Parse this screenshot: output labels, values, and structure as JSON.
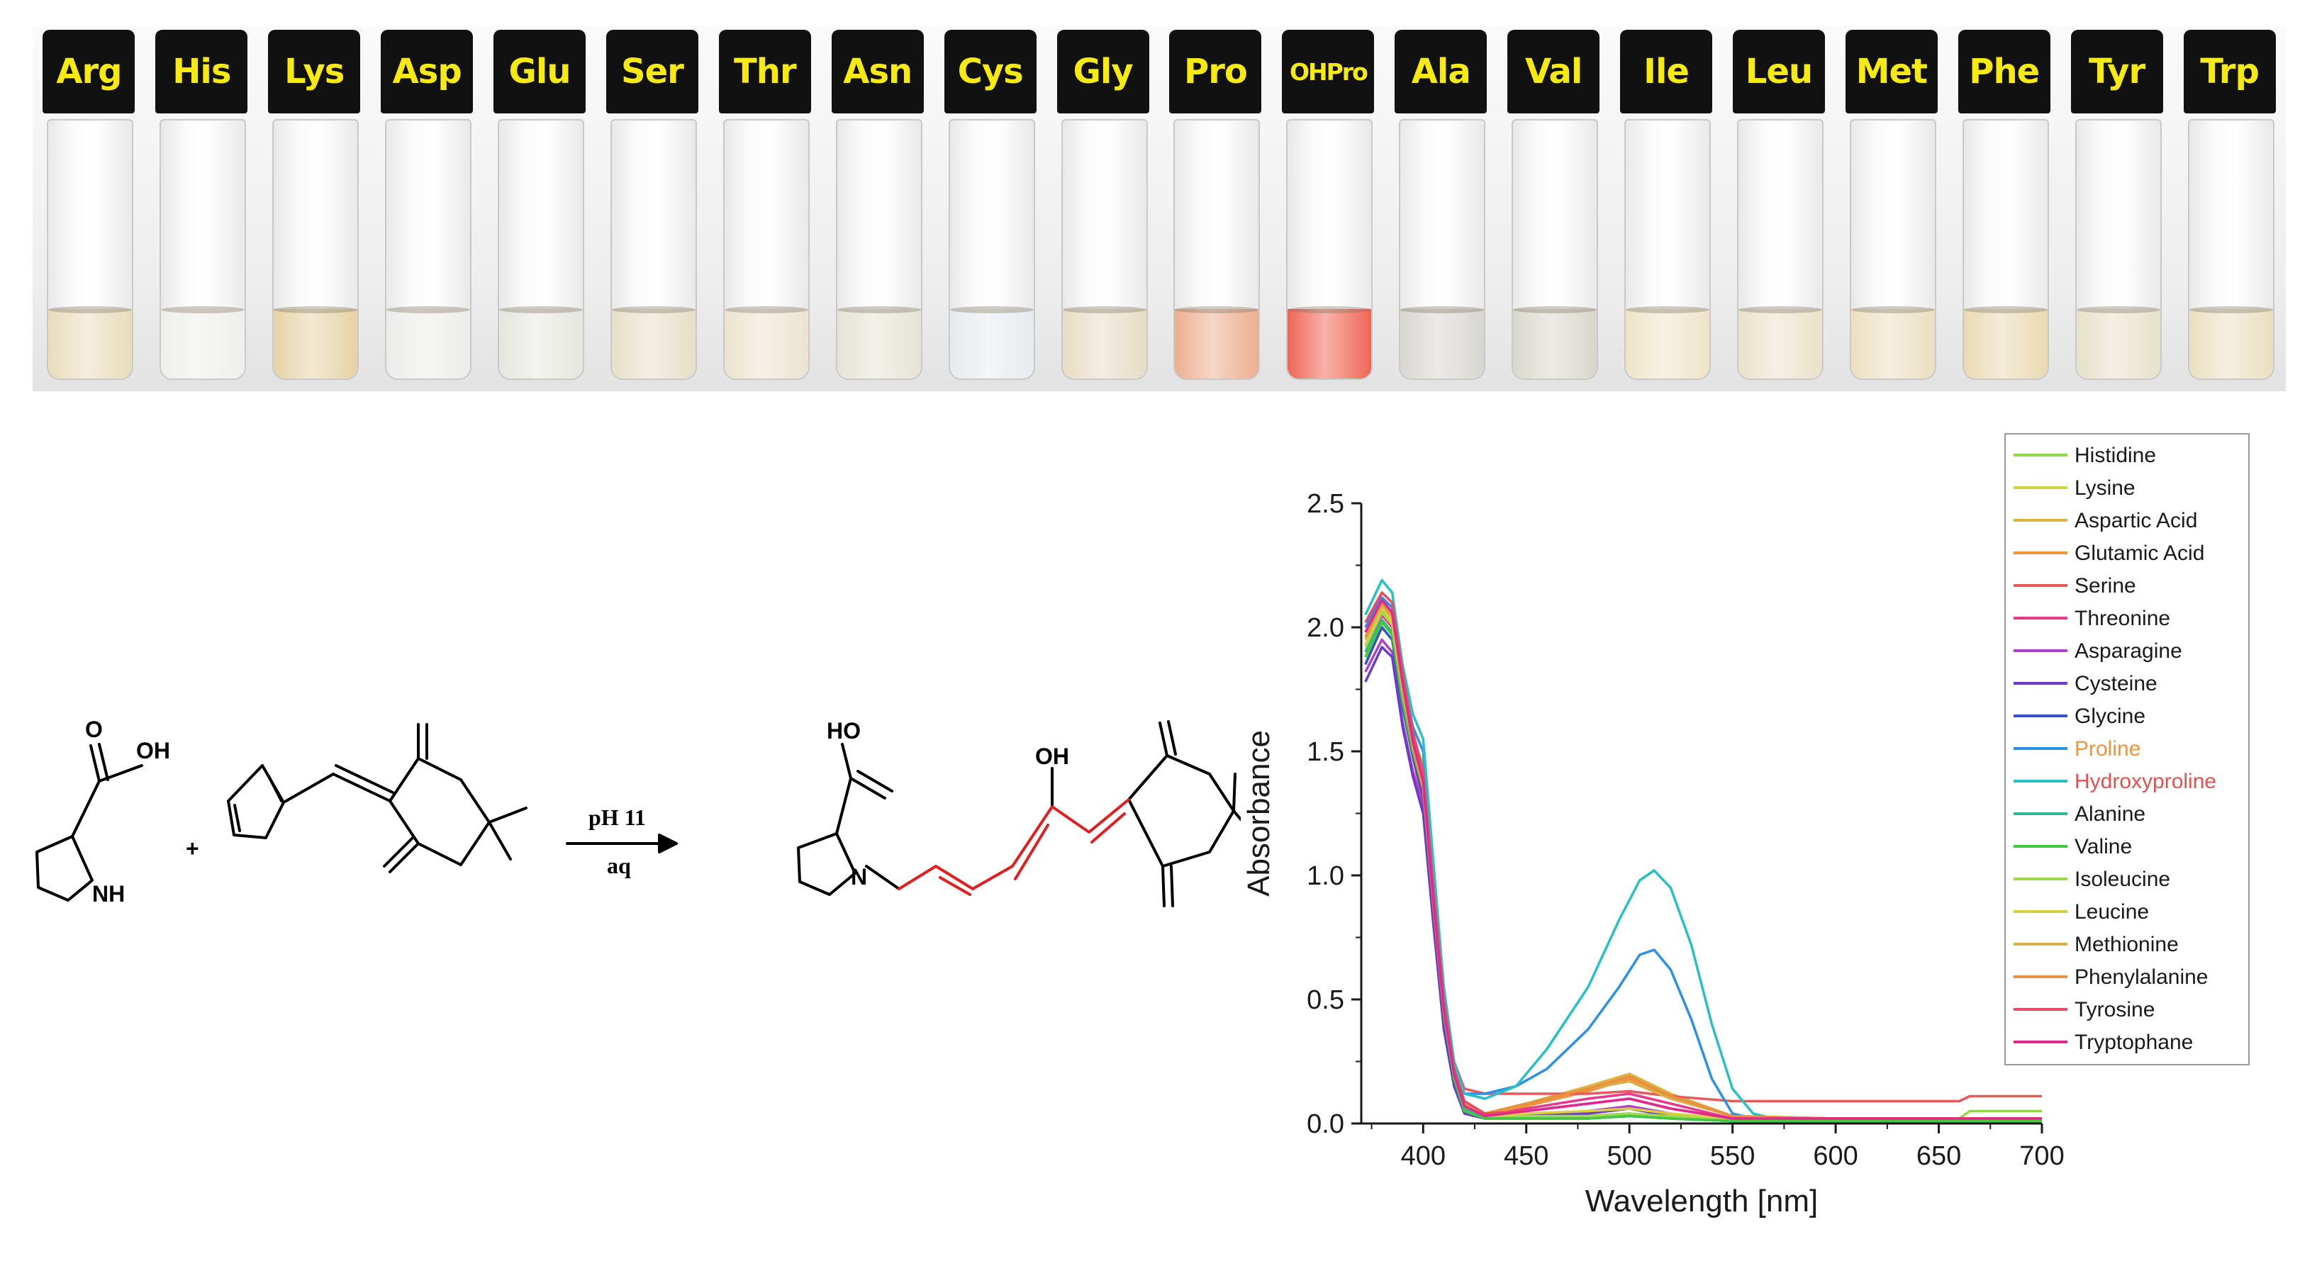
{
  "vials": [
    {
      "label": "Arg",
      "color": "#e9dcbc"
    },
    {
      "label": "His",
      "color": "#eeeeea"
    },
    {
      "label": "Lys",
      "color": "#e7d2a6"
    },
    {
      "label": "Asp",
      "color": "#ececea"
    },
    {
      "label": "Glu",
      "color": "#e6e6df"
    },
    {
      "label": "Ser",
      "color": "#e6dfc8"
    },
    {
      "label": "Thr",
      "color": "#ebe3cf"
    },
    {
      "label": "Asn",
      "color": "#e6e3d6"
    },
    {
      "label": "Cys",
      "color": "#e7ebee"
    },
    {
      "label": "Gly",
      "color": "#e7dcc4"
    },
    {
      "label": "Pro",
      "color": "#ecae90"
    },
    {
      "label": "OHPro",
      "color": "#ef6655"
    },
    {
      "label": "Ala",
      "color": "#d8d6d0"
    },
    {
      "label": "Val",
      "color": "#d9d7cc"
    },
    {
      "label": "Ile",
      "color": "#eee4c8"
    },
    {
      "label": "Leu",
      "color": "#e9e1c9"
    },
    {
      "label": "Met",
      "color": "#ebdfc0"
    },
    {
      "label": "Phe",
      "color": "#ead9b2"
    },
    {
      "label": "Tyr",
      "color": "#e7e1c9"
    },
    {
      "label": "Trp",
      "color": "#e9dfc1"
    }
  ],
  "scheme": {
    "reactant_label_OH": "OH",
    "reactant_label_O": "O",
    "reactant_label_NH": "NH",
    "plus": "+",
    "condition_top": "pH 11",
    "condition_bottom": "aq",
    "product_label_HO": "HO",
    "product_label_N": "N",
    "product_label_OH": "OH",
    "highlight_color": "#e02020"
  },
  "chart_data": {
    "type": "line",
    "xlabel": "Wavelength [nm]",
    "ylabel": "Absorbance",
    "xlim": [
      370,
      700
    ],
    "ylim": [
      0,
      2.5
    ],
    "xticks": [
      400,
      450,
      500,
      550,
      600,
      650,
      700
    ],
    "yticks": [
      0.0,
      0.5,
      1.0,
      1.5,
      2.0,
      2.5
    ],
    "xtick_labels": [
      "400",
      "450",
      "500",
      "550",
      "600",
      "650",
      "700"
    ],
    "ytick_labels": [
      "0.0",
      "0.5",
      "1.0",
      "1.5",
      "2.0",
      "2.5"
    ],
    "legend_position": "top-right",
    "series": [
      {
        "name": "Histidine",
        "color": "#8fd84a",
        "legend_text_color": "#1a1a1a",
        "x": [
          372,
          380,
          385,
          390,
          395,
          400,
          405,
          410,
          415,
          420,
          430,
          450,
          480,
          500,
          520,
          550,
          600,
          660,
          665,
          700
        ],
        "y": [
          1.85,
          2.05,
          2.0,
          1.75,
          1.55,
          1.45,
          1.0,
          0.55,
          0.25,
          0.08,
          0.03,
          0.02,
          0.02,
          0.03,
          0.02,
          0.02,
          0.02,
          0.02,
          0.05,
          0.05
        ]
      },
      {
        "name": "Lysine",
        "color": "#cfd640",
        "legend_text_color": "#1a1a1a",
        "x": [
          372,
          380,
          385,
          390,
          395,
          400,
          405,
          410,
          415,
          420,
          430,
          450,
          480,
          500,
          520,
          550,
          600,
          700
        ],
        "y": [
          1.9,
          2.0,
          1.95,
          1.7,
          1.5,
          1.4,
          0.95,
          0.5,
          0.22,
          0.08,
          0.03,
          0.03,
          0.03,
          0.04,
          0.03,
          0.02,
          0.02,
          0.02
        ]
      },
      {
        "name": "Aspartic Acid",
        "color": "#e0b040",
        "legend_text_color": "#1a1a1a",
        "x": [
          372,
          380,
          385,
          390,
          395,
          400,
          405,
          410,
          415,
          420,
          430,
          450,
          480,
          500,
          520,
          550,
          600,
          700
        ],
        "y": [
          1.95,
          2.07,
          2.02,
          1.75,
          1.5,
          1.3,
          0.85,
          0.45,
          0.2,
          0.08,
          0.04,
          0.08,
          0.15,
          0.2,
          0.12,
          0.03,
          0.02,
          0.02
        ]
      },
      {
        "name": "Glutamic Acid",
        "color": "#f0943a",
        "legend_text_color": "#1a1a1a",
        "x": [
          372,
          380,
          385,
          390,
          395,
          400,
          405,
          410,
          415,
          420,
          430,
          450,
          480,
          500,
          520,
          550,
          600,
          700
        ],
        "y": [
          1.93,
          2.05,
          2.0,
          1.72,
          1.48,
          1.28,
          0.8,
          0.42,
          0.18,
          0.07,
          0.03,
          0.07,
          0.13,
          0.18,
          0.11,
          0.03,
          0.02,
          0.02
        ]
      },
      {
        "name": "Serine",
        "color": "#e85a5a",
        "legend_text_color": "#1a1a1a",
        "x": [
          372,
          380,
          385,
          390,
          395,
          400,
          405,
          410,
          415,
          420,
          430,
          450,
          480,
          500,
          520,
          550,
          600,
          660,
          665,
          700
        ],
        "y": [
          2.0,
          2.12,
          2.08,
          1.8,
          1.55,
          1.4,
          0.95,
          0.5,
          0.25,
          0.14,
          0.12,
          0.12,
          0.12,
          0.13,
          0.11,
          0.09,
          0.09,
          0.09,
          0.11,
          0.11
        ]
      },
      {
        "name": "Threonine",
        "color": "#e8388a",
        "legend_text_color": "#1a1a1a",
        "x": [
          372,
          380,
          385,
          390,
          395,
          400,
          405,
          410,
          415,
          420,
          430,
          450,
          480,
          500,
          520,
          550,
          600,
          700
        ],
        "y": [
          1.9,
          2.05,
          2.0,
          1.7,
          1.48,
          1.3,
          0.85,
          0.42,
          0.18,
          0.06,
          0.03,
          0.06,
          0.1,
          0.12,
          0.08,
          0.02,
          0.02,
          0.02
        ]
      },
      {
        "name": "Asparagine",
        "color": "#b040c8",
        "legend_text_color": "#1a1a1a",
        "x": [
          372,
          380,
          385,
          390,
          395,
          400,
          405,
          410,
          415,
          420,
          430,
          450,
          480,
          500,
          520,
          550,
          600,
          700
        ],
        "y": [
          1.82,
          1.95,
          1.9,
          1.62,
          1.42,
          1.28,
          0.82,
          0.4,
          0.16,
          0.05,
          0.02,
          0.03,
          0.05,
          0.07,
          0.04,
          0.01,
          0.01,
          0.01
        ]
      },
      {
        "name": "Cysteine",
        "color": "#6a3ac8",
        "legend_text_color": "#1a1a1a",
        "x": [
          372,
          380,
          385,
          390,
          395,
          400,
          405,
          410,
          415,
          420,
          430,
          450,
          480,
          500,
          520,
          550,
          600,
          700
        ],
        "y": [
          1.78,
          1.92,
          1.88,
          1.6,
          1.4,
          1.25,
          0.8,
          0.38,
          0.15,
          0.04,
          0.02,
          0.03,
          0.04,
          0.06,
          0.03,
          0.01,
          0.01,
          0.01
        ]
      },
      {
        "name": "Glycine",
        "color": "#3a50c8",
        "legend_text_color": "#1a1a1a",
        "x": [
          372,
          380,
          385,
          390,
          395,
          400,
          405,
          410,
          415,
          420,
          430,
          450,
          480,
          500,
          520,
          550,
          600,
          700
        ],
        "y": [
          1.85,
          2.0,
          1.95,
          1.68,
          1.48,
          1.32,
          0.86,
          0.42,
          0.17,
          0.05,
          0.02,
          0.02,
          0.03,
          0.04,
          0.02,
          0.01,
          0.01,
          0.01
        ]
      },
      {
        "name": "Proline",
        "color": "#2a90e8",
        "legend_text_color": "#f0943a",
        "x": [
          372,
          380,
          385,
          390,
          395,
          400,
          405,
          410,
          415,
          420,
          430,
          445,
          460,
          480,
          495,
          505,
          512,
          520,
          530,
          540,
          550,
          560,
          600,
          700
        ],
        "y": [
          2.0,
          2.12,
          2.08,
          1.8,
          1.6,
          1.5,
          1.0,
          0.5,
          0.22,
          0.12,
          0.12,
          0.15,
          0.22,
          0.38,
          0.55,
          0.68,
          0.7,
          0.62,
          0.42,
          0.18,
          0.04,
          0.02,
          0.01,
          0.01
        ]
      },
      {
        "name": "Hydroxyproline",
        "color": "#28c0c8",
        "legend_text_color": "#e85050",
        "x": [
          372,
          380,
          385,
          390,
          395,
          400,
          405,
          410,
          415,
          420,
          430,
          445,
          460,
          480,
          495,
          505,
          512,
          520,
          530,
          540,
          550,
          560,
          570,
          600,
          700
        ],
        "y": [
          2.05,
          2.19,
          2.14,
          1.85,
          1.65,
          1.55,
          1.05,
          0.55,
          0.25,
          0.12,
          0.1,
          0.15,
          0.3,
          0.55,
          0.82,
          0.98,
          1.02,
          0.95,
          0.72,
          0.4,
          0.14,
          0.04,
          0.02,
          0.01,
          0.01
        ]
      },
      {
        "name": "Alanine",
        "color": "#30b890",
        "legend_text_color": "#1a1a1a",
        "x": [
          372,
          380,
          385,
          390,
          395,
          400,
          405,
          410,
          415,
          420,
          430,
          450,
          480,
          500,
          520,
          550,
          600,
          700
        ],
        "y": [
          1.9,
          2.03,
          1.98,
          1.72,
          1.52,
          1.36,
          0.9,
          0.45,
          0.19,
          0.06,
          0.02,
          0.02,
          0.02,
          0.03,
          0.02,
          0.01,
          0.01,
          0.01
        ]
      },
      {
        "name": "Valine",
        "color": "#40c840",
        "legend_text_color": "#1a1a1a",
        "x": [
          372,
          380,
          385,
          390,
          395,
          400,
          405,
          410,
          415,
          420,
          430,
          450,
          480,
          500,
          520,
          550,
          600,
          700
        ],
        "y": [
          1.88,
          2.02,
          1.97,
          1.7,
          1.5,
          1.35,
          0.88,
          0.44,
          0.18,
          0.05,
          0.02,
          0.02,
          0.02,
          0.03,
          0.02,
          0.01,
          0.01,
          0.01
        ]
      },
      {
        "name": "Isoleucine",
        "color": "#a0d850",
        "legend_text_color": "#1a1a1a",
        "x": [
          372,
          380,
          385,
          390,
          395,
          400,
          405,
          410,
          415,
          420,
          430,
          450,
          480,
          500,
          520,
          550,
          600,
          700
        ],
        "y": [
          1.92,
          2.06,
          2.01,
          1.74,
          1.53,
          1.38,
          0.9,
          0.46,
          0.2,
          0.07,
          0.03,
          0.03,
          0.03,
          0.04,
          0.03,
          0.02,
          0.02,
          0.02
        ]
      },
      {
        "name": "Leucine",
        "color": "#d8d040",
        "legend_text_color": "#1a1a1a",
        "x": [
          372,
          380,
          385,
          390,
          395,
          400,
          405,
          410,
          415,
          420,
          430,
          450,
          480,
          500,
          520,
          550,
          600,
          700
        ],
        "y": [
          1.93,
          2.08,
          2.02,
          1.75,
          1.52,
          1.36,
          0.9,
          0.46,
          0.2,
          0.07,
          0.03,
          0.04,
          0.05,
          0.06,
          0.04,
          0.02,
          0.02,
          0.02
        ]
      },
      {
        "name": "Methionine",
        "color": "#d8b048",
        "legend_text_color": "#1a1a1a",
        "x": [
          372,
          380,
          385,
          390,
          395,
          400,
          405,
          410,
          415,
          420,
          430,
          450,
          480,
          500,
          520,
          550,
          600,
          700
        ],
        "y": [
          1.95,
          2.09,
          2.04,
          1.76,
          1.52,
          1.35,
          0.88,
          0.45,
          0.2,
          0.08,
          0.04,
          0.08,
          0.14,
          0.17,
          0.1,
          0.03,
          0.02,
          0.02
        ]
      },
      {
        "name": "Phenylalanine",
        "color": "#e89040",
        "legend_text_color": "#1a1a1a",
        "x": [
          372,
          380,
          385,
          390,
          395,
          400,
          405,
          410,
          415,
          420,
          430,
          450,
          480,
          500,
          520,
          550,
          600,
          700
        ],
        "y": [
          1.96,
          2.1,
          2.05,
          1.77,
          1.53,
          1.36,
          0.88,
          0.45,
          0.2,
          0.08,
          0.04,
          0.08,
          0.14,
          0.19,
          0.11,
          0.03,
          0.02,
          0.02
        ]
      },
      {
        "name": "Tyrosine",
        "color": "#e84c60",
        "legend_text_color": "#1a1a1a",
        "x": [
          372,
          380,
          385,
          390,
          395,
          400,
          405,
          410,
          415,
          420,
          430,
          450,
          480,
          500,
          520,
          550,
          600,
          700
        ],
        "y": [
          2.02,
          2.14,
          2.1,
          1.82,
          1.58,
          1.42,
          0.95,
          0.5,
          0.22,
          0.09,
          0.04,
          0.05,
          0.08,
          0.1,
          0.06,
          0.02,
          0.02,
          0.02
        ]
      },
      {
        "name": "Tryptophane",
        "color": "#e02890",
        "legend_text_color": "#1a1a1a",
        "x": [
          372,
          380,
          385,
          390,
          395,
          400,
          405,
          410,
          415,
          420,
          430,
          450,
          480,
          500,
          520,
          550,
          600,
          700
        ],
        "y": [
          1.98,
          2.11,
          2.06,
          1.78,
          1.54,
          1.38,
          0.9,
          0.46,
          0.2,
          0.07,
          0.03,
          0.05,
          0.08,
          0.1,
          0.06,
          0.02,
          0.02,
          0.02
        ]
      }
    ]
  }
}
